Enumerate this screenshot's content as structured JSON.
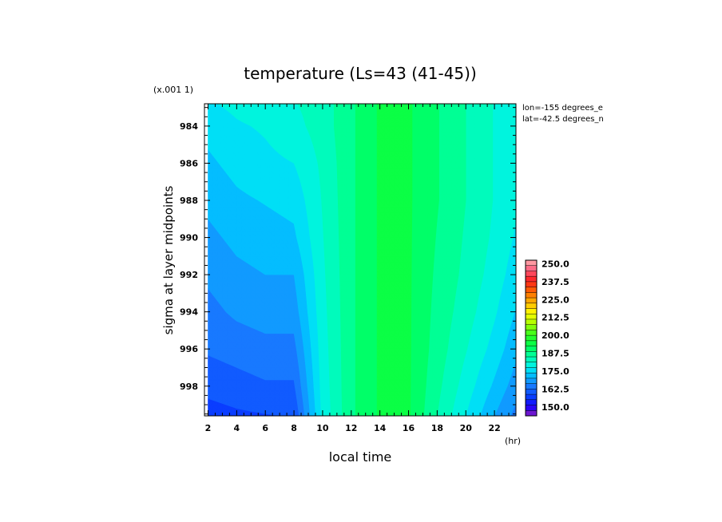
{
  "chart_data": {
    "type": "heatmap",
    "title": "temperature (Ls=43 (41-45))",
    "xlabel": "local time",
    "ylabel": "sigma at layer midpoints",
    "x_unit": "(hr)",
    "y_multiplier": "(x.001 1)",
    "annotations": [
      "lon=-155 degrees_e",
      "lat=-42.5 degrees_n"
    ],
    "xlim": [
      1.75,
      23.5
    ],
    "ylim": [
      982.8,
      999.6
    ],
    "x_ticks": [
      2,
      4,
      6,
      8,
      10,
      12,
      14,
      16,
      18,
      20,
      22
    ],
    "y_ticks": [
      984,
      986,
      988,
      990,
      992,
      994,
      996,
      998
    ],
    "x": [
      2,
      4,
      6,
      8,
      10,
      12,
      14,
      16,
      18,
      20,
      22,
      23.5
    ],
    "y": [
      982.8,
      984,
      986,
      988,
      990,
      992,
      994,
      996,
      998,
      999.6
    ],
    "z": [
      [
        177,
        178.5,
        180,
        181,
        183,
        188,
        193,
        193,
        189,
        185,
        181,
        179
      ],
      [
        175,
        177,
        178,
        180,
        183,
        188,
        193,
        193,
        189,
        185,
        181,
        179
      ],
      [
        173,
        175,
        176.5,
        177.5,
        182,
        188,
        193,
        193,
        189,
        185,
        181,
        179
      ],
      [
        171,
        173,
        174,
        175,
        181.5,
        188,
        193,
        193,
        189,
        185,
        181,
        178
      ],
      [
        169,
        171,
        172,
        173,
        181,
        188,
        193,
        193,
        188.5,
        184.5,
        180.5,
        177
      ],
      [
        167,
        169,
        170,
        170,
        180.5,
        188,
        193,
        193,
        188,
        184,
        179.5,
        175.5
      ],
      [
        165,
        167,
        168,
        168,
        180,
        188,
        193,
        193,
        187.5,
        183,
        178,
        173.5
      ],
      [
        163,
        164,
        165,
        165,
        179.5,
        188,
        193,
        193,
        187,
        181.5,
        176,
        171
      ],
      [
        160,
        161,
        162,
        162,
        179,
        188,
        193,
        193,
        186,
        179.5,
        173,
        168
      ],
      [
        157,
        158,
        158.5,
        159,
        178.5,
        188,
        193,
        193,
        185,
        177.5,
        170,
        165
      ]
    ],
    "levels": [
      143.75,
      147.5,
      151.25,
      155,
      158.75,
      162.5,
      166.25,
      170,
      173.75,
      177.5,
      181.25,
      185,
      188.75,
      192.5,
      196.25,
      200,
      203.75,
      207.5,
      211.25,
      215,
      218.75,
      222.5,
      226.25,
      230,
      233.75,
      237.5,
      241.25,
      245,
      248.75,
      252.5
    ],
    "colorbar_range": [
      143.75,
      252.5
    ],
    "colorbar_labels": [
      "150.0",
      "162.5",
      "175.0",
      "187.5",
      "200.0",
      "212.5",
      "225.0",
      "237.5",
      "250.0"
    ],
    "colorbar_label_values": [
      150,
      162.5,
      175,
      187.5,
      200,
      212.5,
      225,
      237.5,
      250
    ],
    "colormap_stops": [
      [
        "#8f1fbf",
        0
      ],
      [
        "#1a00ff",
        0.06
      ],
      [
        "#0a3cff",
        0.12
      ],
      [
        "#1a82ff",
        0.2
      ],
      [
        "#00c8ff",
        0.27
      ],
      [
        "#00f0f0",
        0.31
      ],
      [
        "#00ffaa",
        0.38
      ],
      [
        "#00ff50",
        0.45
      ],
      [
        "#30ff20",
        0.52
      ],
      [
        "#b4ff00",
        0.6
      ],
      [
        "#ffff00",
        0.66
      ],
      [
        "#ffb400",
        0.73
      ],
      [
        "#ff6400",
        0.8
      ],
      [
        "#ff2020",
        0.87
      ],
      [
        "#ff6080",
        0.94
      ],
      [
        "#ffb0b0",
        1
      ]
    ]
  }
}
